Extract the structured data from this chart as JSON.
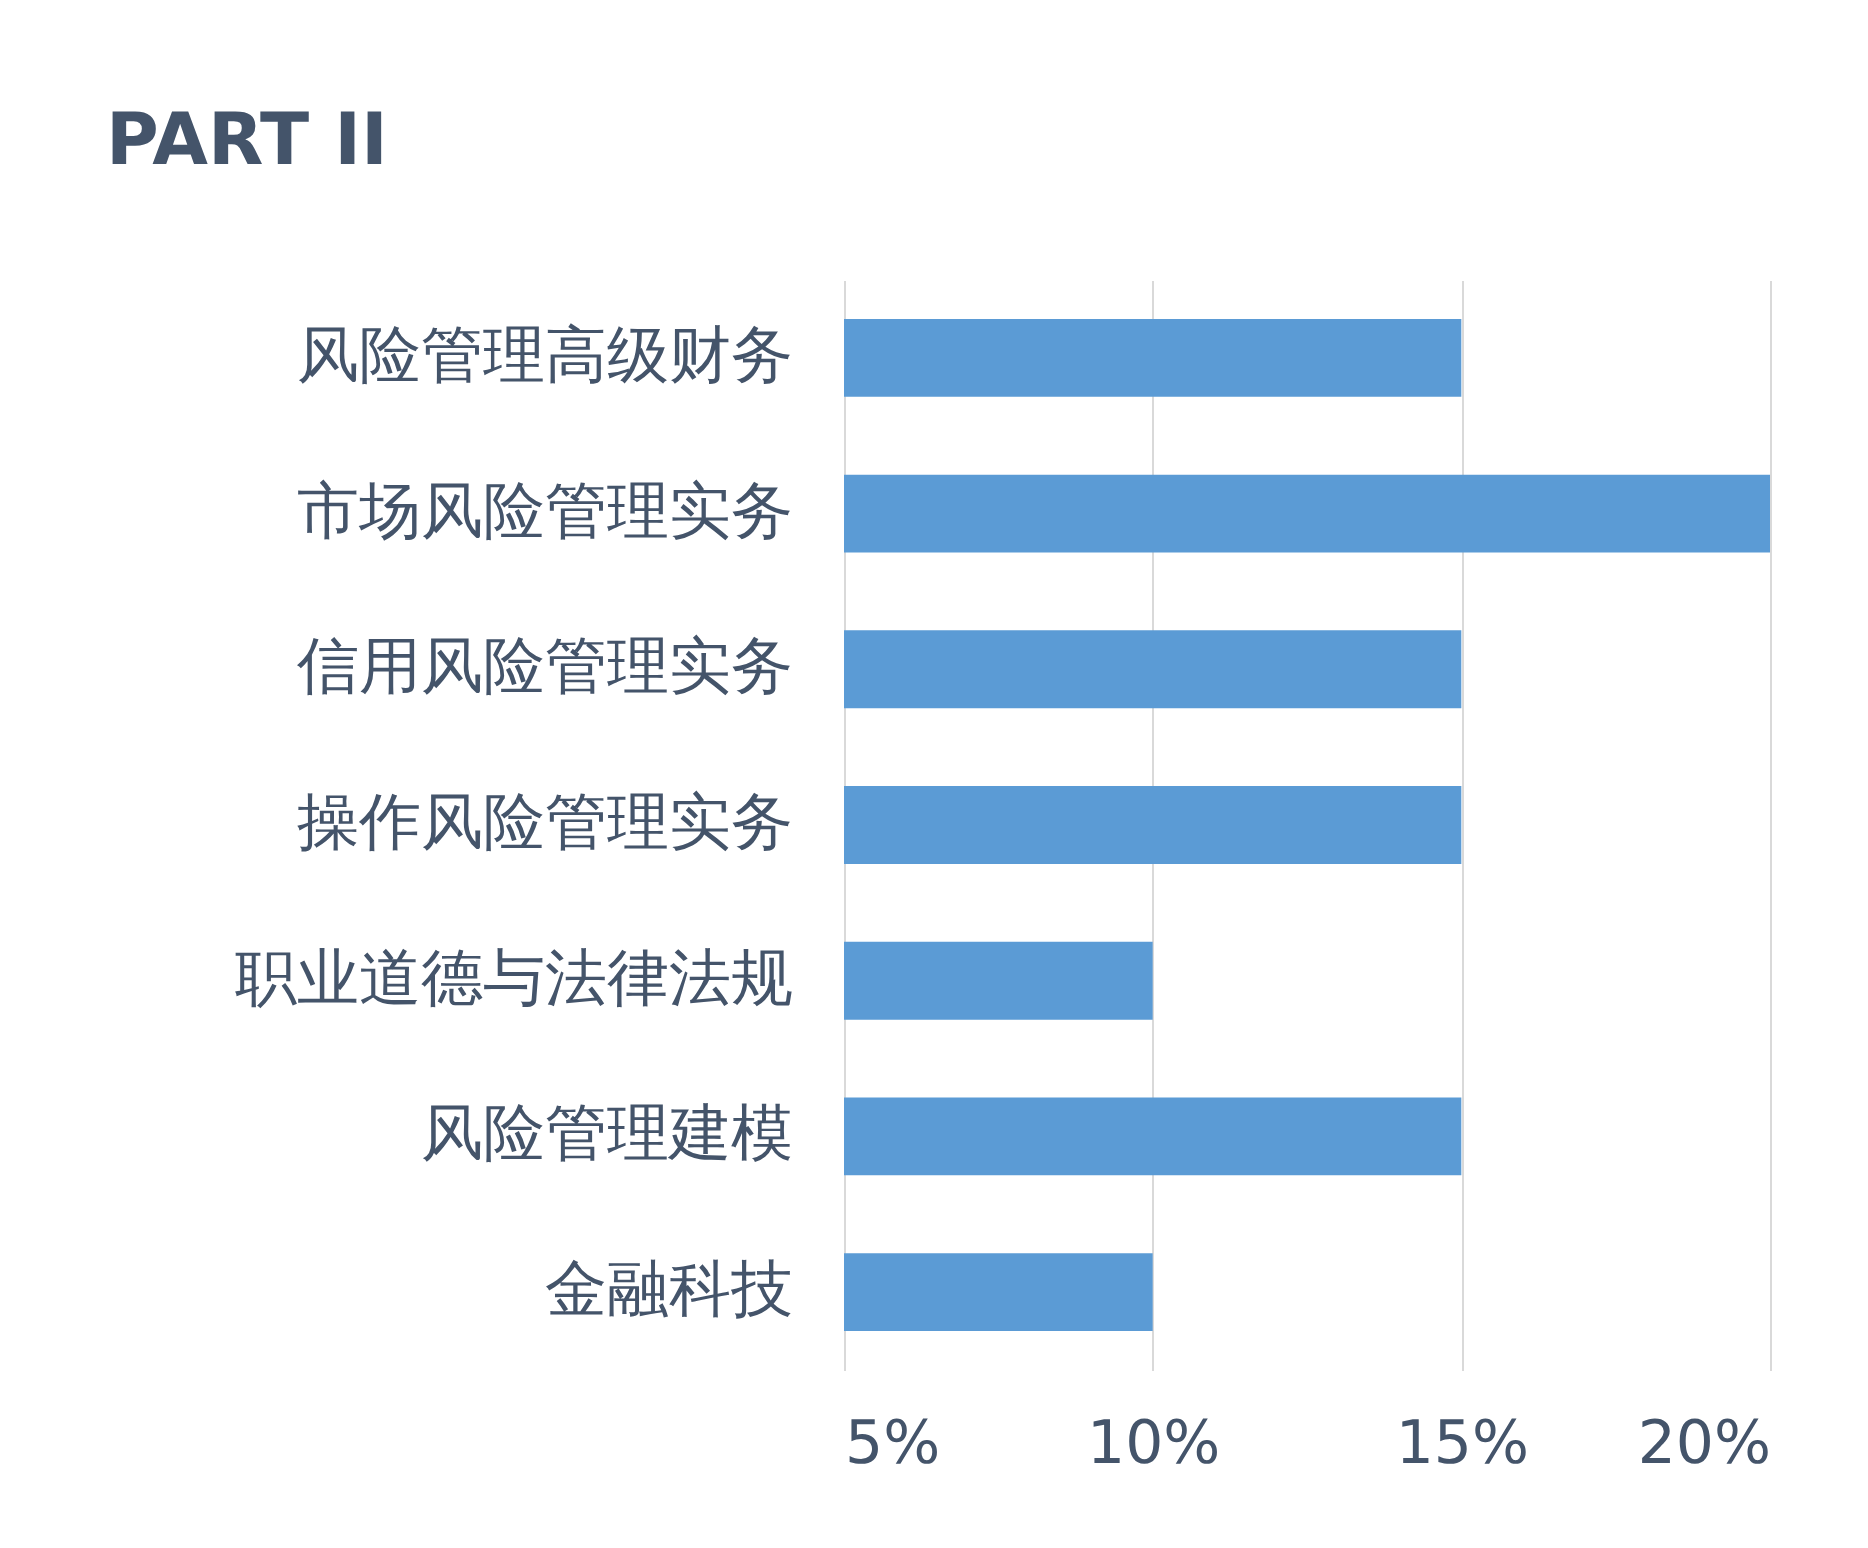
{
  "chart_data": {
    "type": "bar",
    "orientation": "horizontal",
    "title": "PART II",
    "categories": [
      "风险管理高级财务",
      "市场风险管理实务",
      "信用风险管理实务",
      "操作风险管理实务",
      "职业道德与法律法规",
      "风险管理建模",
      "金融科技"
    ],
    "values": [
      15,
      20,
      15,
      15,
      10,
      15,
      10
    ],
    "color": "#5b9bd5",
    "xlim": [
      5,
      20
    ],
    "xticks": [
      {
        "value": 5,
        "label": "5%"
      },
      {
        "value": 10,
        "label": "10%"
      },
      {
        "value": 15,
        "label": "15%"
      },
      {
        "value": 20,
        "label": "20%"
      }
    ],
    "grid": "x"
  }
}
